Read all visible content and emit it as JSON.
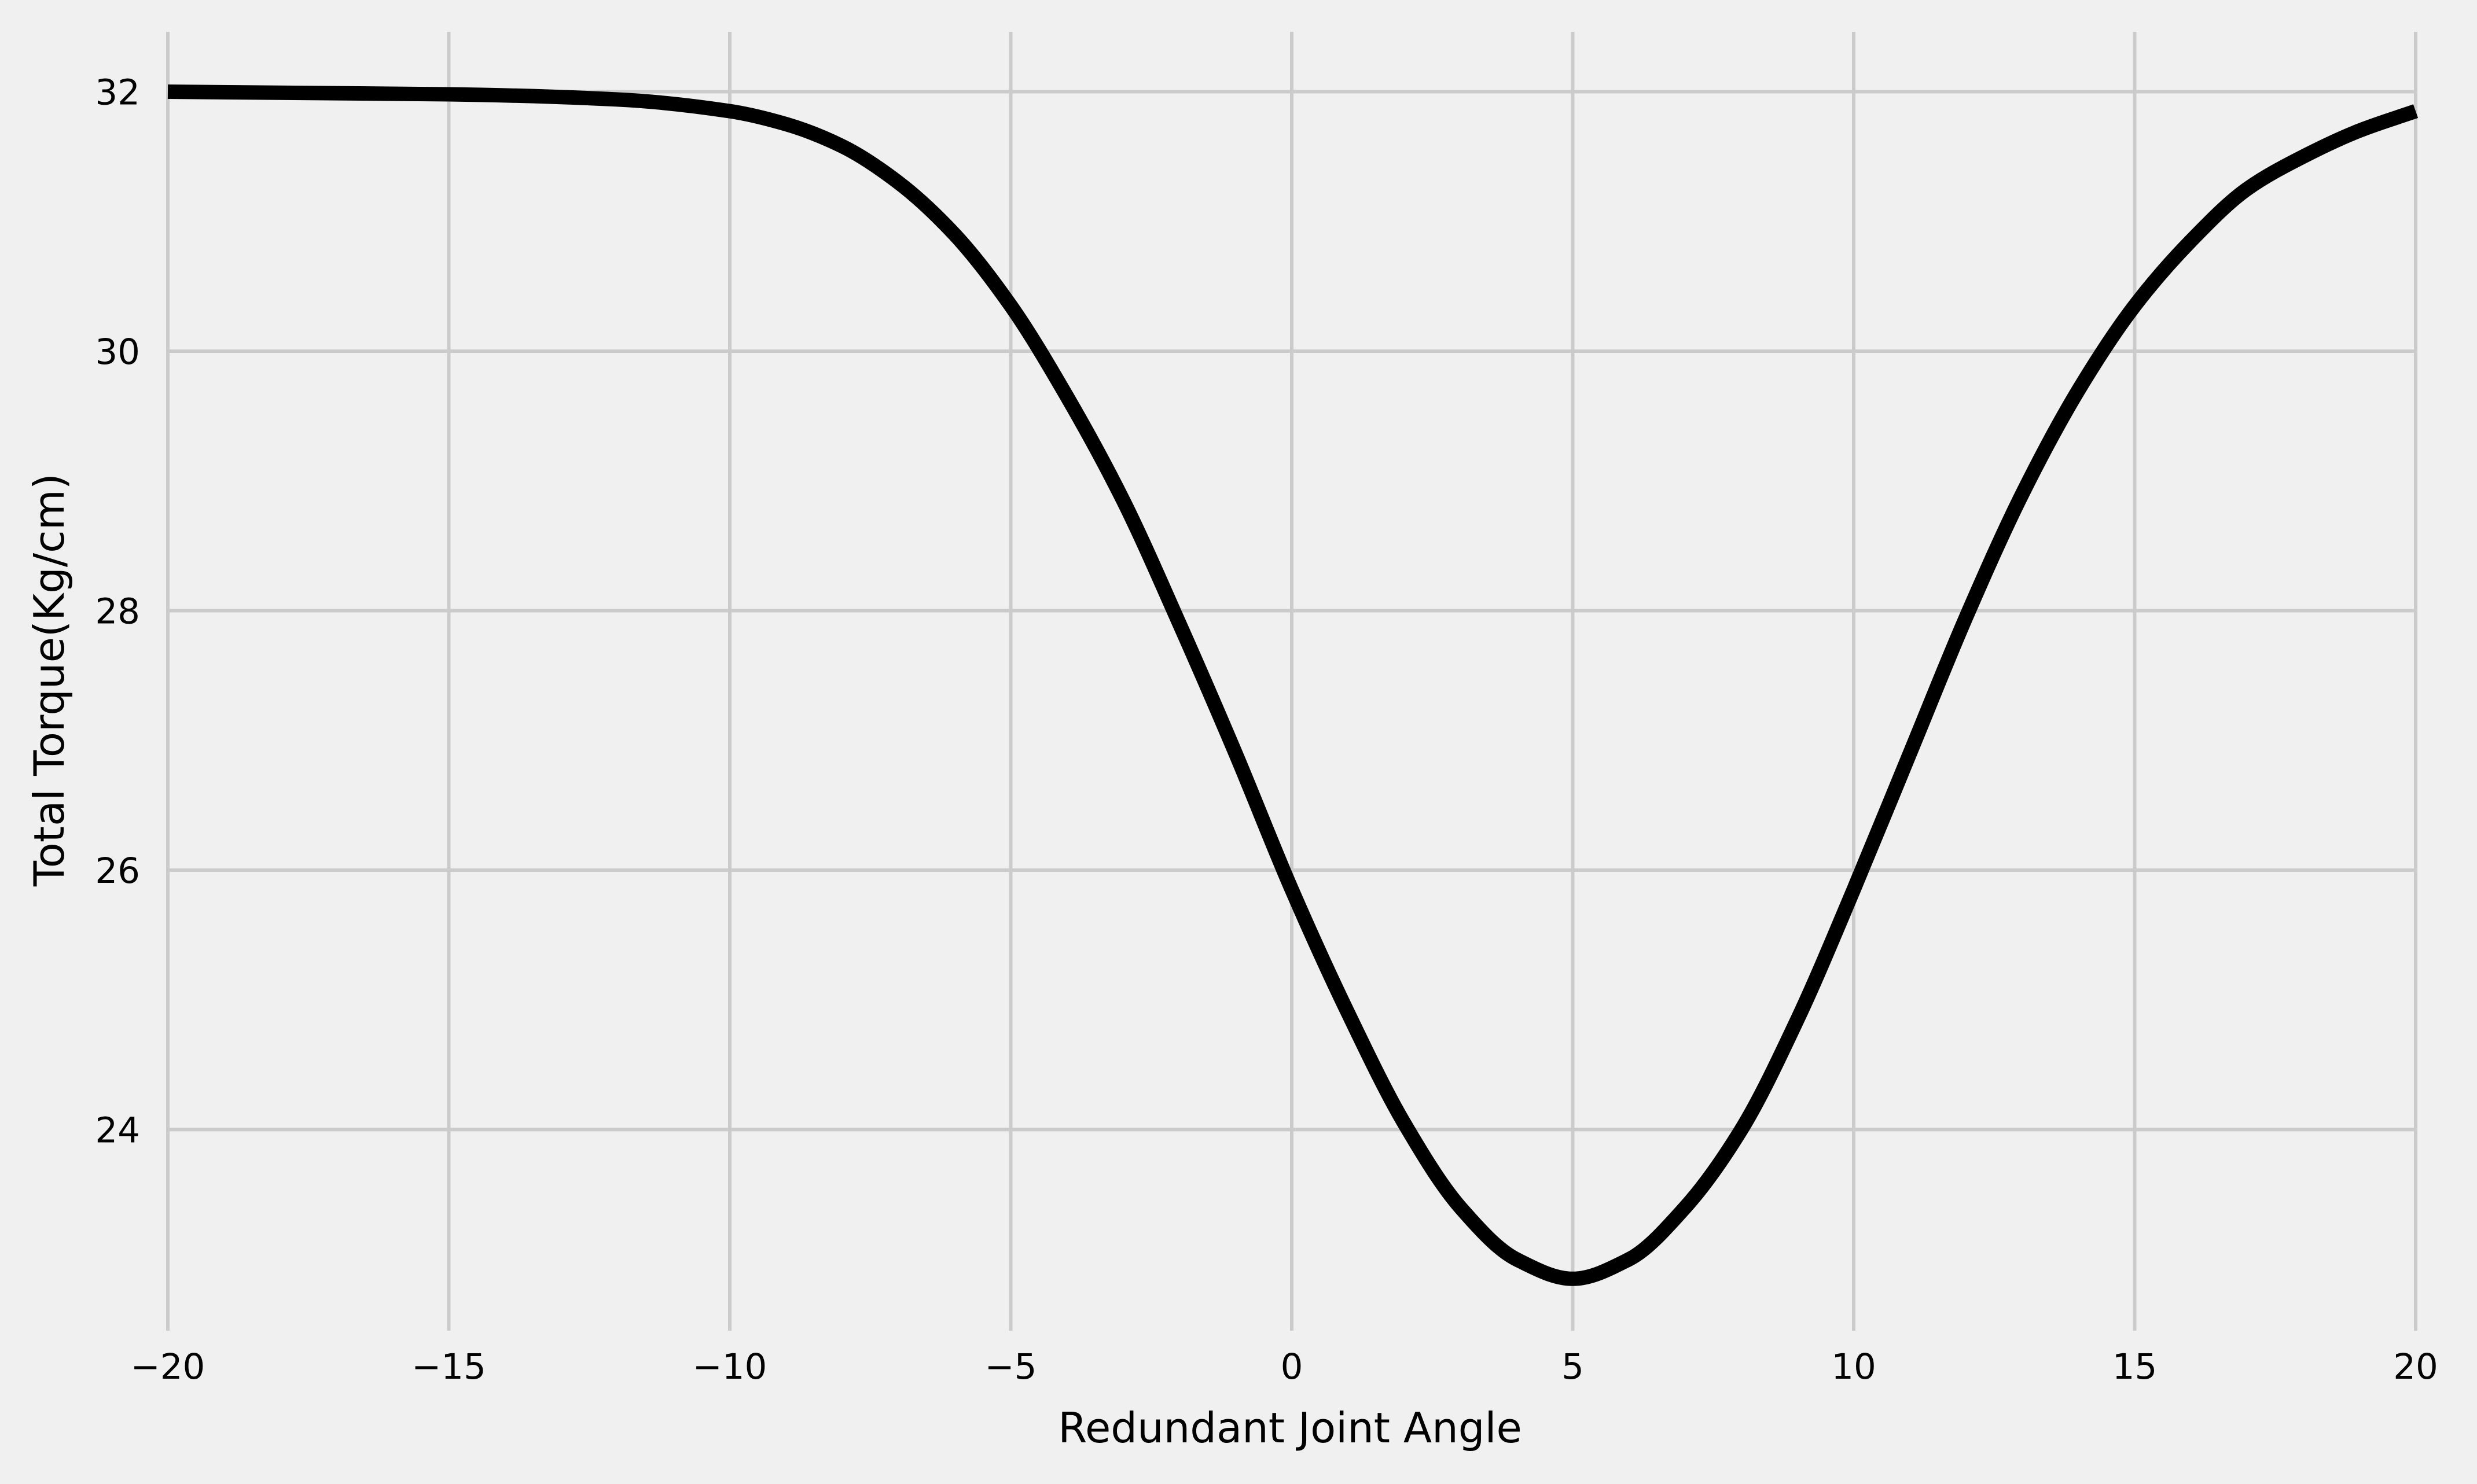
{
  "chart_data": {
    "type": "line",
    "title": "",
    "xlabel": "Redundant Joint Angle",
    "ylabel": "Total Torque(Kg/cm)",
    "xlim": [
      -20,
      20
    ],
    "ylim": [
      22.45,
      32.35
    ],
    "x_ticks": [
      -20,
      -15,
      -10,
      -5,
      0,
      5,
      10,
      15,
      20
    ],
    "x_tick_labels": [
      "−20",
      "−15",
      "−10",
      "−5",
      "0",
      "5",
      "10",
      "15",
      "20"
    ],
    "y_ticks": [
      24,
      26,
      28,
      30,
      32
    ],
    "y_tick_labels": [
      "24",
      "26",
      "28",
      "30",
      "32"
    ],
    "grid": true,
    "legend": "none",
    "colors": {
      "background": "#f0f0f0",
      "grid": "#cbcbcb",
      "line": "#000000",
      "text": "#000000"
    },
    "series": [
      {
        "color": "#000000",
        "x": [
          -20,
          -15,
          -12,
          -10,
          -9,
          -8,
          -7,
          -6,
          -5,
          -4,
          -3,
          -2,
          -1,
          0,
          1,
          2,
          3,
          4,
          5,
          6,
          7,
          8,
          9,
          10,
          11,
          12,
          13,
          14,
          15,
          16,
          17,
          18,
          19,
          20
        ],
        "y": [
          32.0,
          31.98,
          31.94,
          31.85,
          31.75,
          31.58,
          31.3,
          30.9,
          30.35,
          29.65,
          28.85,
          27.9,
          26.9,
          25.85,
          24.9,
          24.05,
          23.4,
          23.0,
          22.85,
          23.0,
          23.4,
          24.0,
          24.85,
          25.85,
          26.9,
          27.95,
          28.9,
          29.7,
          30.35,
          30.85,
          31.25,
          31.5,
          31.7,
          31.85
        ]
      }
    ]
  }
}
